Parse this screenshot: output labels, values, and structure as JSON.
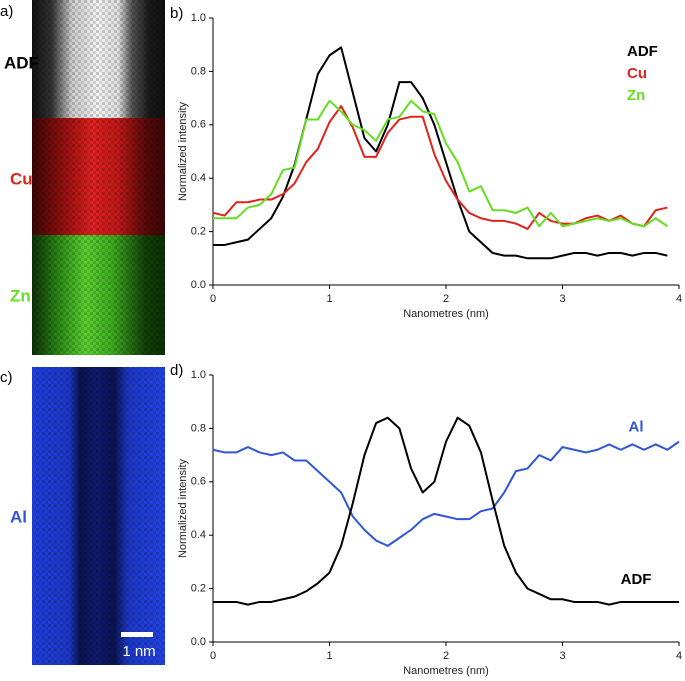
{
  "panels": {
    "a": {
      "label": "a)",
      "channels": [
        "ADF",
        "Cu",
        "Zn"
      ]
    },
    "c": {
      "label": "c)",
      "channel": "Al",
      "scale_bar": "1 nm"
    }
  },
  "chart_data": [
    {
      "type": "line",
      "label": "b)",
      "xlabel": "Nanometres (nm)",
      "ylabel": "Normalized intensity",
      "x": [
        0,
        0.1,
        0.2,
        0.3,
        0.4,
        0.5,
        0.6,
        0.7,
        0.8,
        0.9,
        1,
        1.1,
        1.2,
        1.3,
        1.4,
        1.5,
        1.6,
        1.7,
        1.8,
        1.9,
        2,
        2.1,
        2.2,
        2.3,
        2.4,
        2.5,
        2.6,
        2.7,
        2.8,
        2.9,
        3,
        3.1,
        3.2,
        3.3,
        3.4,
        3.5,
        3.6,
        3.7,
        3.8,
        3.9
      ],
      "series": [
        {
          "name": "ADF",
          "color": "#000000",
          "values": [
            0.15,
            0.15,
            0.16,
            0.17,
            0.21,
            0.25,
            0.33,
            0.45,
            0.62,
            0.79,
            0.86,
            0.89,
            0.72,
            0.55,
            0.5,
            0.6,
            0.76,
            0.76,
            0.7,
            0.6,
            0.46,
            0.32,
            0.2,
            0.16,
            0.12,
            0.11,
            0.11,
            0.1,
            0.1,
            0.1,
            0.11,
            0.12,
            0.12,
            0.11,
            0.12,
            0.12,
            0.11,
            0.12,
            0.12,
            0.11
          ]
        },
        {
          "name": "Cu",
          "color": "#e0231c",
          "values": [
            0.27,
            0.26,
            0.31,
            0.31,
            0.32,
            0.32,
            0.34,
            0.38,
            0.46,
            0.51,
            0.61,
            0.67,
            0.59,
            0.48,
            0.48,
            0.57,
            0.62,
            0.63,
            0.63,
            0.49,
            0.39,
            0.32,
            0.27,
            0.25,
            0.24,
            0.24,
            0.23,
            0.21,
            0.27,
            0.24,
            0.23,
            0.23,
            0.25,
            0.26,
            0.24,
            0.26,
            0.23,
            0.22,
            0.28,
            0.29
          ]
        },
        {
          "name": "Zn",
          "color": "#66dd22",
          "values": [
            0.25,
            0.25,
            0.25,
            0.29,
            0.3,
            0.34,
            0.43,
            0.44,
            0.62,
            0.62,
            0.69,
            0.65,
            0.6,
            0.58,
            0.54,
            0.62,
            0.63,
            0.69,
            0.65,
            0.64,
            0.53,
            0.46,
            0.35,
            0.37,
            0.28,
            0.28,
            0.27,
            0.29,
            0.22,
            0.27,
            0.22,
            0.23,
            0.24,
            0.25,
            0.24,
            0.25,
            0.23,
            0.22,
            0.25,
            0.22
          ]
        }
      ],
      "xlim": [
        0,
        4
      ],
      "xticks": [
        0,
        1,
        2,
        3,
        4
      ],
      "ylim": [
        0,
        1
      ],
      "yticks": [
        {
          "value": 0,
          "label": "0.0"
        },
        0.2,
        0.4,
        0.6,
        0.8,
        {
          "value": 1,
          "label": "1.0"
        }
      ],
      "grid": false,
      "legend": "upper right"
    },
    {
      "type": "line",
      "label": "d)",
      "xlabel": "Nanometres (nm)",
      "ylabel": "Normalized intensity",
      "x": [
        0,
        0.1,
        0.2,
        0.3,
        0.4,
        0.5,
        0.6,
        0.7,
        0.8,
        0.9,
        1,
        1.1,
        1.2,
        1.3,
        1.4,
        1.5,
        1.6,
        1.7,
        1.8,
        1.9,
        2,
        2.1,
        2.2,
        2.3,
        2.4,
        2.5,
        2.6,
        2.7,
        2.8,
        2.9,
        3,
        3.1,
        3.2,
        3.3,
        3.4,
        3.5,
        3.6,
        3.7,
        3.8,
        3.9,
        4
      ],
      "series": [
        {
          "name": "Al",
          "color": "#2e56d6",
          "values": [
            0.72,
            0.71,
            0.71,
            0.73,
            0.71,
            0.7,
            0.71,
            0.68,
            0.68,
            0.64,
            0.6,
            0.56,
            0.47,
            0.42,
            0.38,
            0.36,
            0.39,
            0.42,
            0.46,
            0.48,
            0.47,
            0.46,
            0.46,
            0.49,
            0.5,
            0.56,
            0.64,
            0.65,
            0.7,
            0.68,
            0.73,
            0.72,
            0.71,
            0.72,
            0.74,
            0.72,
            0.74,
            0.72,
            0.74,
            0.72,
            0.75
          ]
        },
        {
          "name": "ADF",
          "color": "#000000",
          "values": [
            0.15,
            0.15,
            0.15,
            0.14,
            0.15,
            0.15,
            0.16,
            0.17,
            0.19,
            0.22,
            0.26,
            0.36,
            0.52,
            0.7,
            0.82,
            0.84,
            0.8,
            0.65,
            0.56,
            0.6,
            0.75,
            0.84,
            0.81,
            0.71,
            0.53,
            0.36,
            0.26,
            0.2,
            0.18,
            0.16,
            0.16,
            0.15,
            0.15,
            0.15,
            0.14,
            0.15,
            0.15,
            0.15,
            0.15,
            0.15,
            0.15
          ]
        }
      ],
      "xlim": [
        0,
        4
      ],
      "xticks": [
        0,
        1,
        2,
        3,
        4
      ],
      "ylim": [
        0,
        1
      ],
      "yticks": [
        {
          "value": 0,
          "label": "0.0"
        },
        0.2,
        0.4,
        0.6,
        0.8,
        {
          "value": 1,
          "label": "1.0"
        }
      ],
      "grid": false,
      "legend": "inline"
    }
  ]
}
